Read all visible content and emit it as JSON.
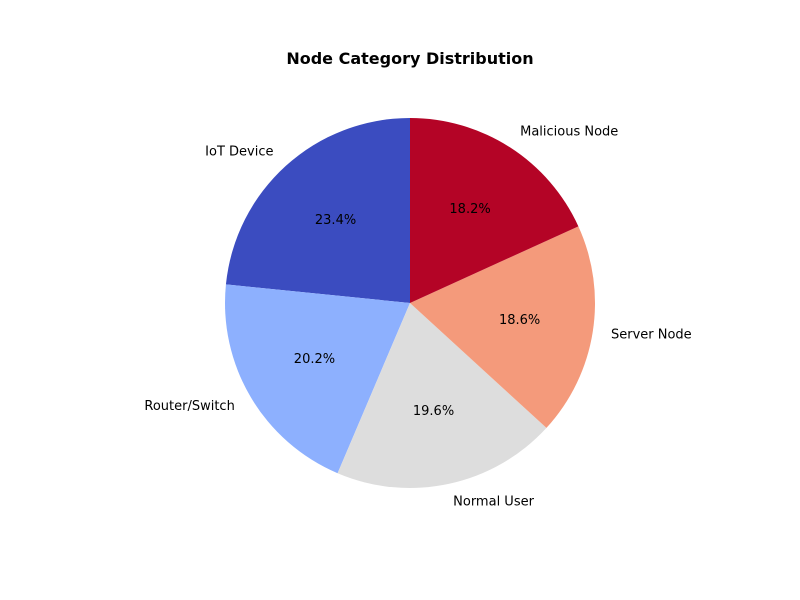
{
  "chart_data": {
    "type": "pie",
    "title": "Node Category Distribution",
    "start_angle_deg": 90,
    "direction": "counterclockwise",
    "slices": [
      {
        "label": "IoT Device",
        "pct_label": "23.4%",
        "value": 23.4,
        "color": "#3b4cc0"
      },
      {
        "label": "Router/Switch",
        "pct_label": "20.2%",
        "value": 20.2,
        "color": "#8db0fe"
      },
      {
        "label": "Normal User",
        "pct_label": "19.6%",
        "value": 19.6,
        "color": "#dddddd"
      },
      {
        "label": "Server Node",
        "pct_label": "18.6%",
        "value": 18.6,
        "color": "#f49a7b"
      },
      {
        "label": "Malicious Node",
        "pct_label": "18.2%",
        "value": 18.2,
        "color": "#b40426"
      }
    ]
  }
}
